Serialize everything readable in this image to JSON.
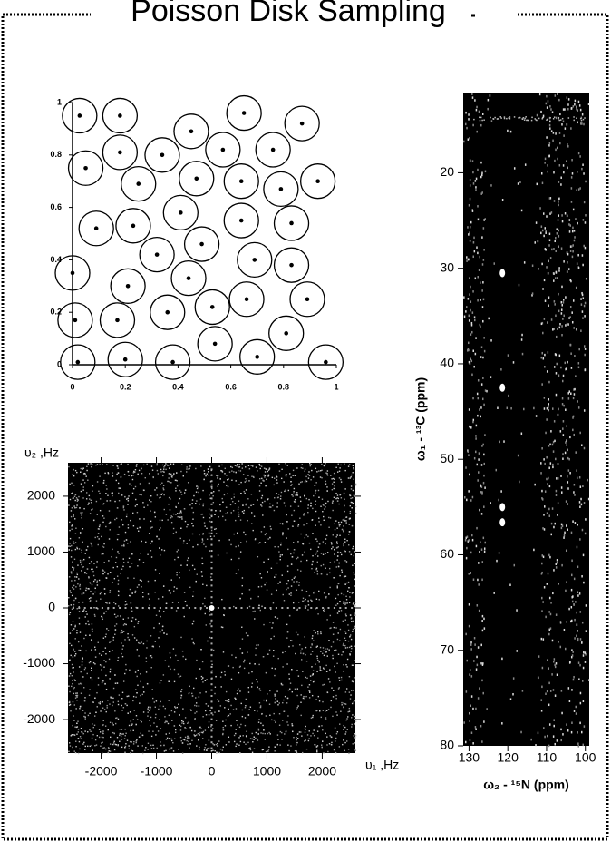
{
  "title": "Poisson Disk Sampling",
  "chart_data": [
    {
      "type": "scatter",
      "marker": "dot-in-circle",
      "color": "#000000",
      "x": [
        0.027,
        0.18,
        0.45,
        0.65,
        0.87,
        0.05,
        0.18,
        0.34,
        0.57,
        0.76,
        0.25,
        0.47,
        0.64,
        0.79,
        0.93,
        0.09,
        0.23,
        0.41,
        0.64,
        0.83,
        0.32,
        0.49,
        0.69,
        0.83,
        0,
        0.21,
        0.44,
        0.66,
        0.89,
        0.01,
        0.17,
        0.36,
        0.53,
        0.81,
        0.02,
        0.2,
        0.38,
        0.54,
        0.7,
        0.96
      ],
      "y": [
        0.95,
        0.95,
        0.89,
        0.96,
        0.92,
        0.75,
        0.81,
        0.8,
        0.82,
        0.82,
        0.69,
        0.71,
        0.7,
        0.67,
        0.7,
        0.52,
        0.53,
        0.58,
        0.55,
        0.54,
        0.42,
        0.46,
        0.4,
        0.38,
        0.35,
        0.3,
        0.33,
        0.25,
        0.25,
        0.17,
        0.17,
        0.2,
        0.22,
        0.12,
        0.01,
        0.02,
        0.01,
        0.08,
        0.03,
        0.01
      ],
      "xlim": [
        0,
        1
      ],
      "ylim": [
        0,
        1
      ],
      "xticks": [
        0,
        0.2,
        0.4,
        0.6,
        0.8,
        1
      ],
      "yticks": [
        0,
        0.2,
        0.4,
        0.6,
        0.8,
        1
      ]
    },
    {
      "type": "scatter",
      "background": "#000000",
      "color": "#ffffff",
      "x_label": "υ₁ ,Hz",
      "y_label": "υ₂ ,Hz",
      "x": [
        0
      ],
      "y": [
        0
      ],
      "xlim": [
        -2600,
        2600
      ],
      "ylim": [
        -2600,
        2600
      ],
      "xticks": [
        -2000,
        -1000,
        0,
        1000,
        2000
      ],
      "yticks": [
        -2000,
        -1000,
        0,
        1000,
        2000
      ]
    },
    {
      "type": "scatter",
      "background": "#000000",
      "color": "#ffffff",
      "x_label": "ω₂ - ¹⁵N  (ppm)",
      "y_label": "ω₁ - ¹³C  (ppm)",
      "x": [
        121.4,
        121.4,
        121.4,
        121.4
      ],
      "y": [
        30.5,
        42.5,
        55,
        56.6
      ],
      "xlim": [
        131.5,
        99
      ],
      "ylim": [
        80,
        11.6
      ],
      "xticks": [
        130,
        120,
        110,
        100
      ],
      "yticks": [
        20,
        30,
        40,
        50,
        60,
        70,
        80
      ]
    }
  ]
}
